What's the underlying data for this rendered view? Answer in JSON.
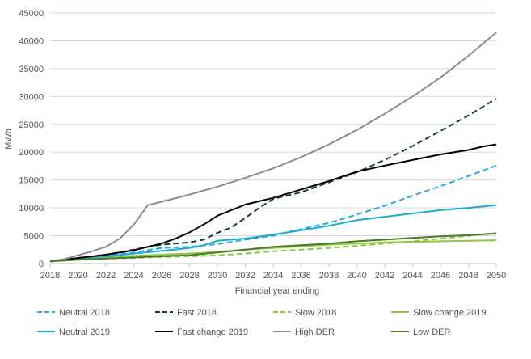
{
  "chart_data": {
    "type": "line",
    "title": "",
    "xlabel": "Financial year ending",
    "ylabel": "MWh",
    "xlim": [
      2018,
      2050
    ],
    "ylim": [
      0,
      45000
    ],
    "xticks": [
      "2018",
      "2020",
      "2022",
      "2024",
      "2026",
      "2028",
      "2030",
      "2032",
      "2034",
      "2036",
      "2038",
      "2040",
      "2042",
      "2044",
      "2046",
      "2048",
      "2050"
    ],
    "yticks": [
      "0",
      "5000",
      "10000",
      "15000",
      "20000",
      "25000",
      "30000",
      "35000",
      "40000",
      "45000"
    ],
    "grid": "horizontal",
    "legend_position": "bottom",
    "series": [
      {
        "name": "Neutral 2018",
        "color": "#29abe2",
        "dash": "dashed",
        "points": [
          [
            2018,
            400
          ],
          [
            2020,
            1000
          ],
          [
            2022,
            1400
          ],
          [
            2024,
            2000
          ],
          [
            2026,
            2800
          ],
          [
            2028,
            3000
          ],
          [
            2030,
            3500
          ],
          [
            2032,
            4300
          ],
          [
            2034,
            5000
          ],
          [
            2036,
            6200
          ],
          [
            2038,
            7300
          ],
          [
            2040,
            8800
          ],
          [
            2042,
            10400
          ],
          [
            2044,
            12200
          ],
          [
            2046,
            13900
          ],
          [
            2048,
            15700
          ],
          [
            2050,
            17600
          ]
        ]
      },
      {
        "name": "Fast 2018",
        "color": "#16384a",
        "dash": "dashed",
        "points": [
          [
            2018,
            400
          ],
          [
            2020,
            1000
          ],
          [
            2022,
            1600
          ],
          [
            2024,
            2500
          ],
          [
            2025,
            3000
          ],
          [
            2026,
            3400
          ],
          [
            2028,
            3800
          ],
          [
            2029,
            4300
          ],
          [
            2030,
            5500
          ],
          [
            2031,
            6500
          ],
          [
            2032,
            8200
          ],
          [
            2033,
            10000
          ],
          [
            2034,
            11600
          ],
          [
            2036,
            12800
          ],
          [
            2038,
            14600
          ],
          [
            2040,
            16400
          ],
          [
            2042,
            18600
          ],
          [
            2044,
            21100
          ],
          [
            2046,
            23800
          ],
          [
            2048,
            26600
          ],
          [
            2050,
            29600
          ]
        ]
      },
      {
        "name": "Slow 2018",
        "color": "#8dc63f",
        "dash": "dashed",
        "points": [
          [
            2018,
            400
          ],
          [
            2020,
            700
          ],
          [
            2022,
            900
          ],
          [
            2024,
            1000
          ],
          [
            2026,
            1200
          ],
          [
            2028,
            1300
          ],
          [
            2030,
            1500
          ],
          [
            2032,
            1800
          ],
          [
            2034,
            2200
          ],
          [
            2036,
            2500
          ],
          [
            2038,
            2800
          ],
          [
            2040,
            3200
          ],
          [
            2042,
            3600
          ],
          [
            2044,
            4000
          ],
          [
            2046,
            4500
          ],
          [
            2048,
            5000
          ],
          [
            2050,
            5500
          ]
        ]
      },
      {
        "name": "Slow change 2019",
        "color": "#8dc63f",
        "dash": "solid",
        "points": [
          [
            2018,
            400
          ],
          [
            2020,
            900
          ],
          [
            2022,
            1200
          ],
          [
            2024,
            1400
          ],
          [
            2026,
            1600
          ],
          [
            2028,
            1800
          ],
          [
            2030,
            2100
          ],
          [
            2032,
            2500
          ],
          [
            2034,
            2800
          ],
          [
            2036,
            3100
          ],
          [
            2038,
            3400
          ],
          [
            2040,
            3600
          ],
          [
            2042,
            3800
          ],
          [
            2044,
            3900
          ],
          [
            2046,
            4000
          ],
          [
            2048,
            4100
          ],
          [
            2050,
            4200
          ]
        ]
      },
      {
        "name": "Neutral 2019",
        "color": "#1cabce",
        "dash": "solid",
        "points": [
          [
            2018,
            400
          ],
          [
            2020,
            900
          ],
          [
            2022,
            1300
          ],
          [
            2024,
            1800
          ],
          [
            2026,
            2300
          ],
          [
            2028,
            2800
          ],
          [
            2029,
            3300
          ],
          [
            2030,
            4100
          ],
          [
            2032,
            4500
          ],
          [
            2034,
            5200
          ],
          [
            2036,
            6000
          ],
          [
            2038,
            6800
          ],
          [
            2040,
            7800
          ],
          [
            2042,
            8400
          ],
          [
            2044,
            9000
          ],
          [
            2046,
            9600
          ],
          [
            2048,
            10000
          ],
          [
            2050,
            10500
          ]
        ]
      },
      {
        "name": "Fast change 2019",
        "color": "#000000",
        "dash": "solid",
        "points": [
          [
            2018,
            400
          ],
          [
            2020,
            1000
          ],
          [
            2022,
            1600
          ],
          [
            2024,
            2400
          ],
          [
            2026,
            3600
          ],
          [
            2027,
            4500
          ],
          [
            2028,
            5600
          ],
          [
            2029,
            7000
          ],
          [
            2030,
            8600
          ],
          [
            2032,
            10600
          ],
          [
            2034,
            11800
          ],
          [
            2036,
            13300
          ],
          [
            2038,
            14800
          ],
          [
            2040,
            16500
          ],
          [
            2042,
            17600
          ],
          [
            2044,
            18600
          ],
          [
            2046,
            19600
          ],
          [
            2048,
            20400
          ],
          [
            2049,
            21000
          ],
          [
            2050,
            21400
          ]
        ]
      },
      {
        "name": "High DER",
        "color": "#8c8c8c",
        "dash": "solid",
        "points": [
          [
            2018,
            400
          ],
          [
            2019,
            800
          ],
          [
            2020,
            1500
          ],
          [
            2021,
            2200
          ],
          [
            2022,
            3000
          ],
          [
            2023,
            4500
          ],
          [
            2024,
            7000
          ],
          [
            2025,
            10500
          ],
          [
            2026,
            11100
          ],
          [
            2028,
            12400
          ],
          [
            2030,
            13800
          ],
          [
            2032,
            15400
          ],
          [
            2034,
            17100
          ],
          [
            2036,
            19100
          ],
          [
            2038,
            21400
          ],
          [
            2040,
            24000
          ],
          [
            2042,
            26900
          ],
          [
            2044,
            30000
          ],
          [
            2046,
            33400
          ],
          [
            2048,
            37300
          ],
          [
            2050,
            41500
          ]
        ]
      },
      {
        "name": "Low DER",
        "color": "#4a7a2a",
        "dash": "solid",
        "points": [
          [
            2018,
            400
          ],
          [
            2020,
            700
          ],
          [
            2022,
            900
          ],
          [
            2024,
            1100
          ],
          [
            2026,
            1300
          ],
          [
            2028,
            1500
          ],
          [
            2030,
            2000
          ],
          [
            2032,
            2500
          ],
          [
            2034,
            3000
          ],
          [
            2036,
            3300
          ],
          [
            2038,
            3600
          ],
          [
            2040,
            4000
          ],
          [
            2042,
            4300
          ],
          [
            2044,
            4600
          ],
          [
            2046,
            4900
          ],
          [
            2048,
            5100
          ],
          [
            2050,
            5400
          ]
        ]
      }
    ]
  }
}
